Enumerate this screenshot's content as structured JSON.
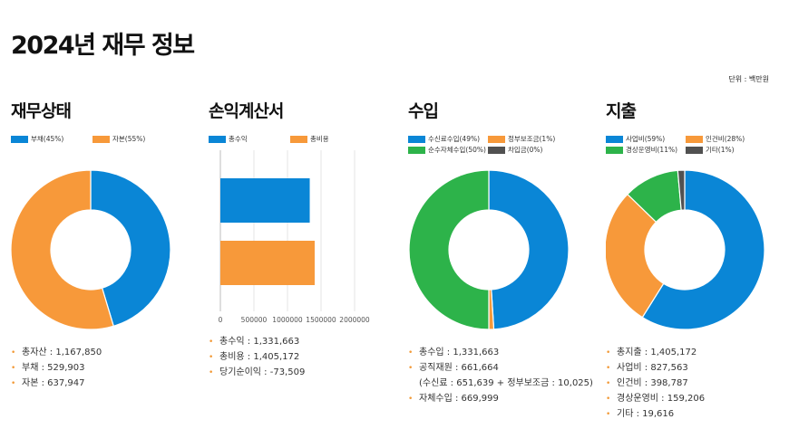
{
  "page": {
    "title": "2024년 재무 정보",
    "unit": "단위 : 백만원"
  },
  "colors": {
    "blue": "#0a86d6",
    "orange": "#f7993a",
    "green": "#2db34a",
    "gray": "#515151",
    "bullet": "#f29a38"
  },
  "panels": {
    "assets": {
      "title": "재무상태",
      "stats": [
        "총자산 : 1,167,850",
        "부채 : 529,903",
        "자본 : 637,947"
      ]
    },
    "income": {
      "title": "손익계산서",
      "stats": [
        "총수익 : 1,331,663",
        "총비용 : 1,405,172",
        "당기순이익 : -73,509"
      ]
    },
    "revenue": {
      "title": "수입",
      "stats": [
        "총수입 : 1,331,663",
        "공직재원 : 661,664",
        "(수신료 : 651,639 + 정부보조금 : 10,025)",
        "자체수입 : 669,999"
      ]
    },
    "expense": {
      "title": "지출",
      "stats": [
        "총지출 : 1,405,172",
        "사업비 : 827,563",
        "인건비 : 398,787",
        "경상운영비 : 159,206",
        "기타 : 19,616"
      ]
    }
  },
  "chart_data": [
    {
      "type": "pie",
      "donut": true,
      "labels": [
        "부채(45%)",
        "자본(55%)"
      ],
      "values": [
        529903,
        637947
      ],
      "colors": [
        "#0a86d6",
        "#f7993a"
      ]
    },
    {
      "type": "bar",
      "orientation": "horizontal",
      "categories": [
        "총수익",
        "총비용"
      ],
      "values": [
        1331663,
        1405172
      ],
      "legend": [
        "총수익",
        "총비용"
      ],
      "colors": [
        "#0a86d6",
        "#f7993a"
      ],
      "xlim": [
        0,
        2000000
      ],
      "xticks": [
        "0",
        "500000",
        "1000000",
        "1500000",
        "2000000"
      ],
      "grid": true
    },
    {
      "type": "pie",
      "donut": true,
      "labels": [
        "수신료수입(49%)",
        "정부보조금(1%)",
        "순수자체수입(50%)",
        "차입금(0%)"
      ],
      "values": [
        49,
        1,
        50,
        0
      ],
      "colors": [
        "#0a86d6",
        "#f7993a",
        "#2db34a",
        "#515151"
      ]
    },
    {
      "type": "pie",
      "donut": true,
      "labels": [
        "사업비(59%)",
        "인건비(28%)",
        "경상운영비(11%)",
        "기타(1%)"
      ],
      "values": [
        827563,
        398787,
        159206,
        19616
      ],
      "colors": [
        "#0a86d6",
        "#f7993a",
        "#2db34a",
        "#515151"
      ]
    }
  ]
}
